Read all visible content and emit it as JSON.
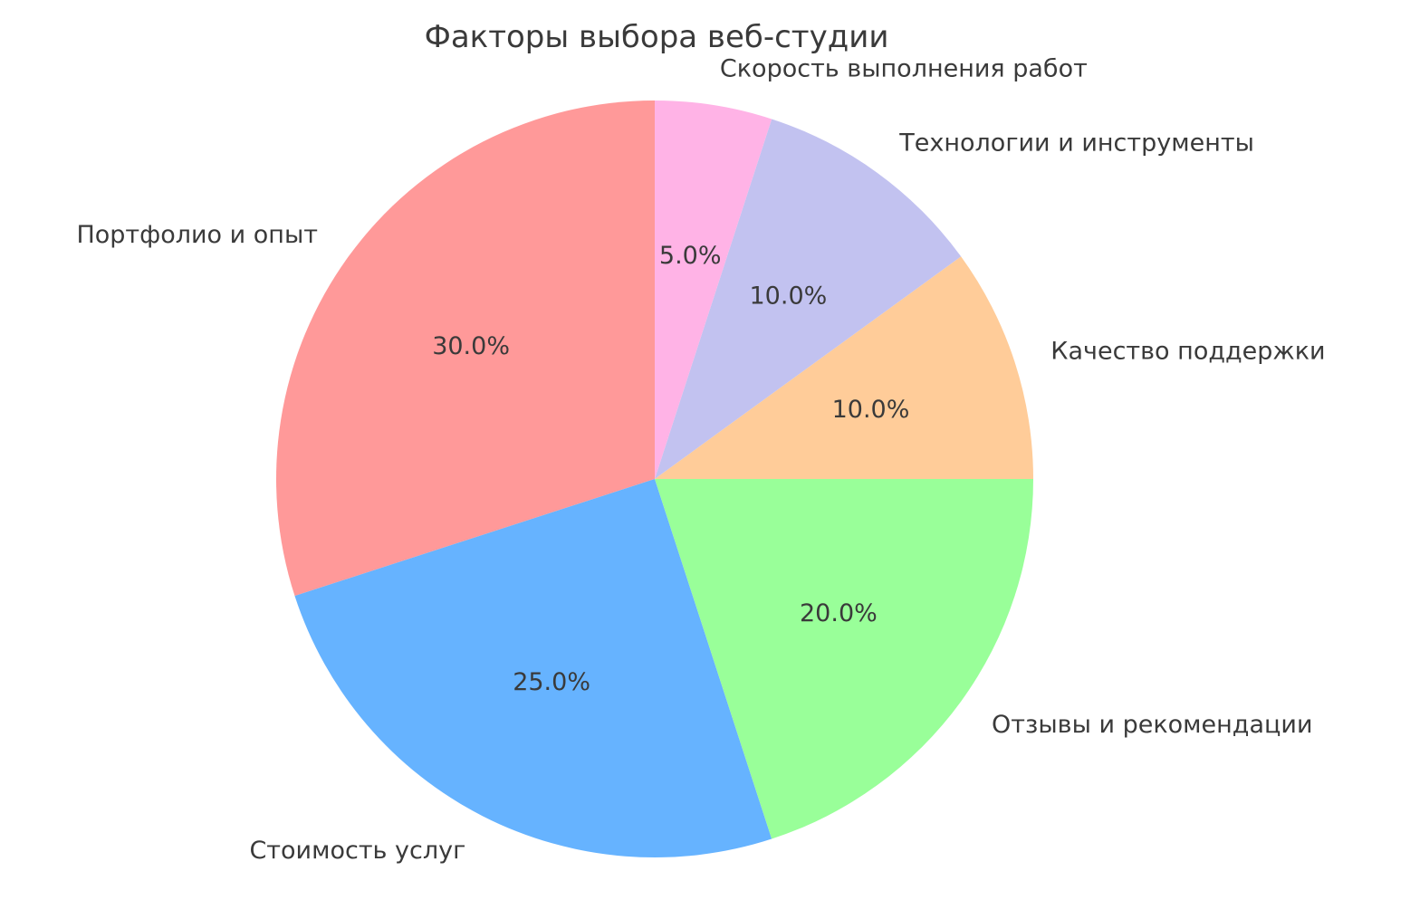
{
  "chart_data": {
    "type": "pie",
    "title": "Факторы выбора веб-студии",
    "labels": [
      "Портфолио и опыт",
      "Стоимость услуг",
      "Отзывы и рекомендации",
      "Качество поддержки",
      "Технологии и инструменты",
      "Скорость выполнения работ"
    ],
    "values": [
      30.0,
      25.0,
      20.0,
      10.0,
      10.0,
      5.0
    ],
    "pct_labels": [
      "30.0%",
      "25.0%",
      "20.0%",
      "10.0%",
      "10.0%",
      "5.0%"
    ],
    "colors": [
      "#ff9999",
      "#66b3ff",
      "#99ff99",
      "#ffcc99",
      "#c2c2f0",
      "#ffb3e6"
    ],
    "start_angle": 90,
    "counterclock": true,
    "legend": "none",
    "text_color": "#3a3a3a",
    "background_color": "#ffffff"
  }
}
